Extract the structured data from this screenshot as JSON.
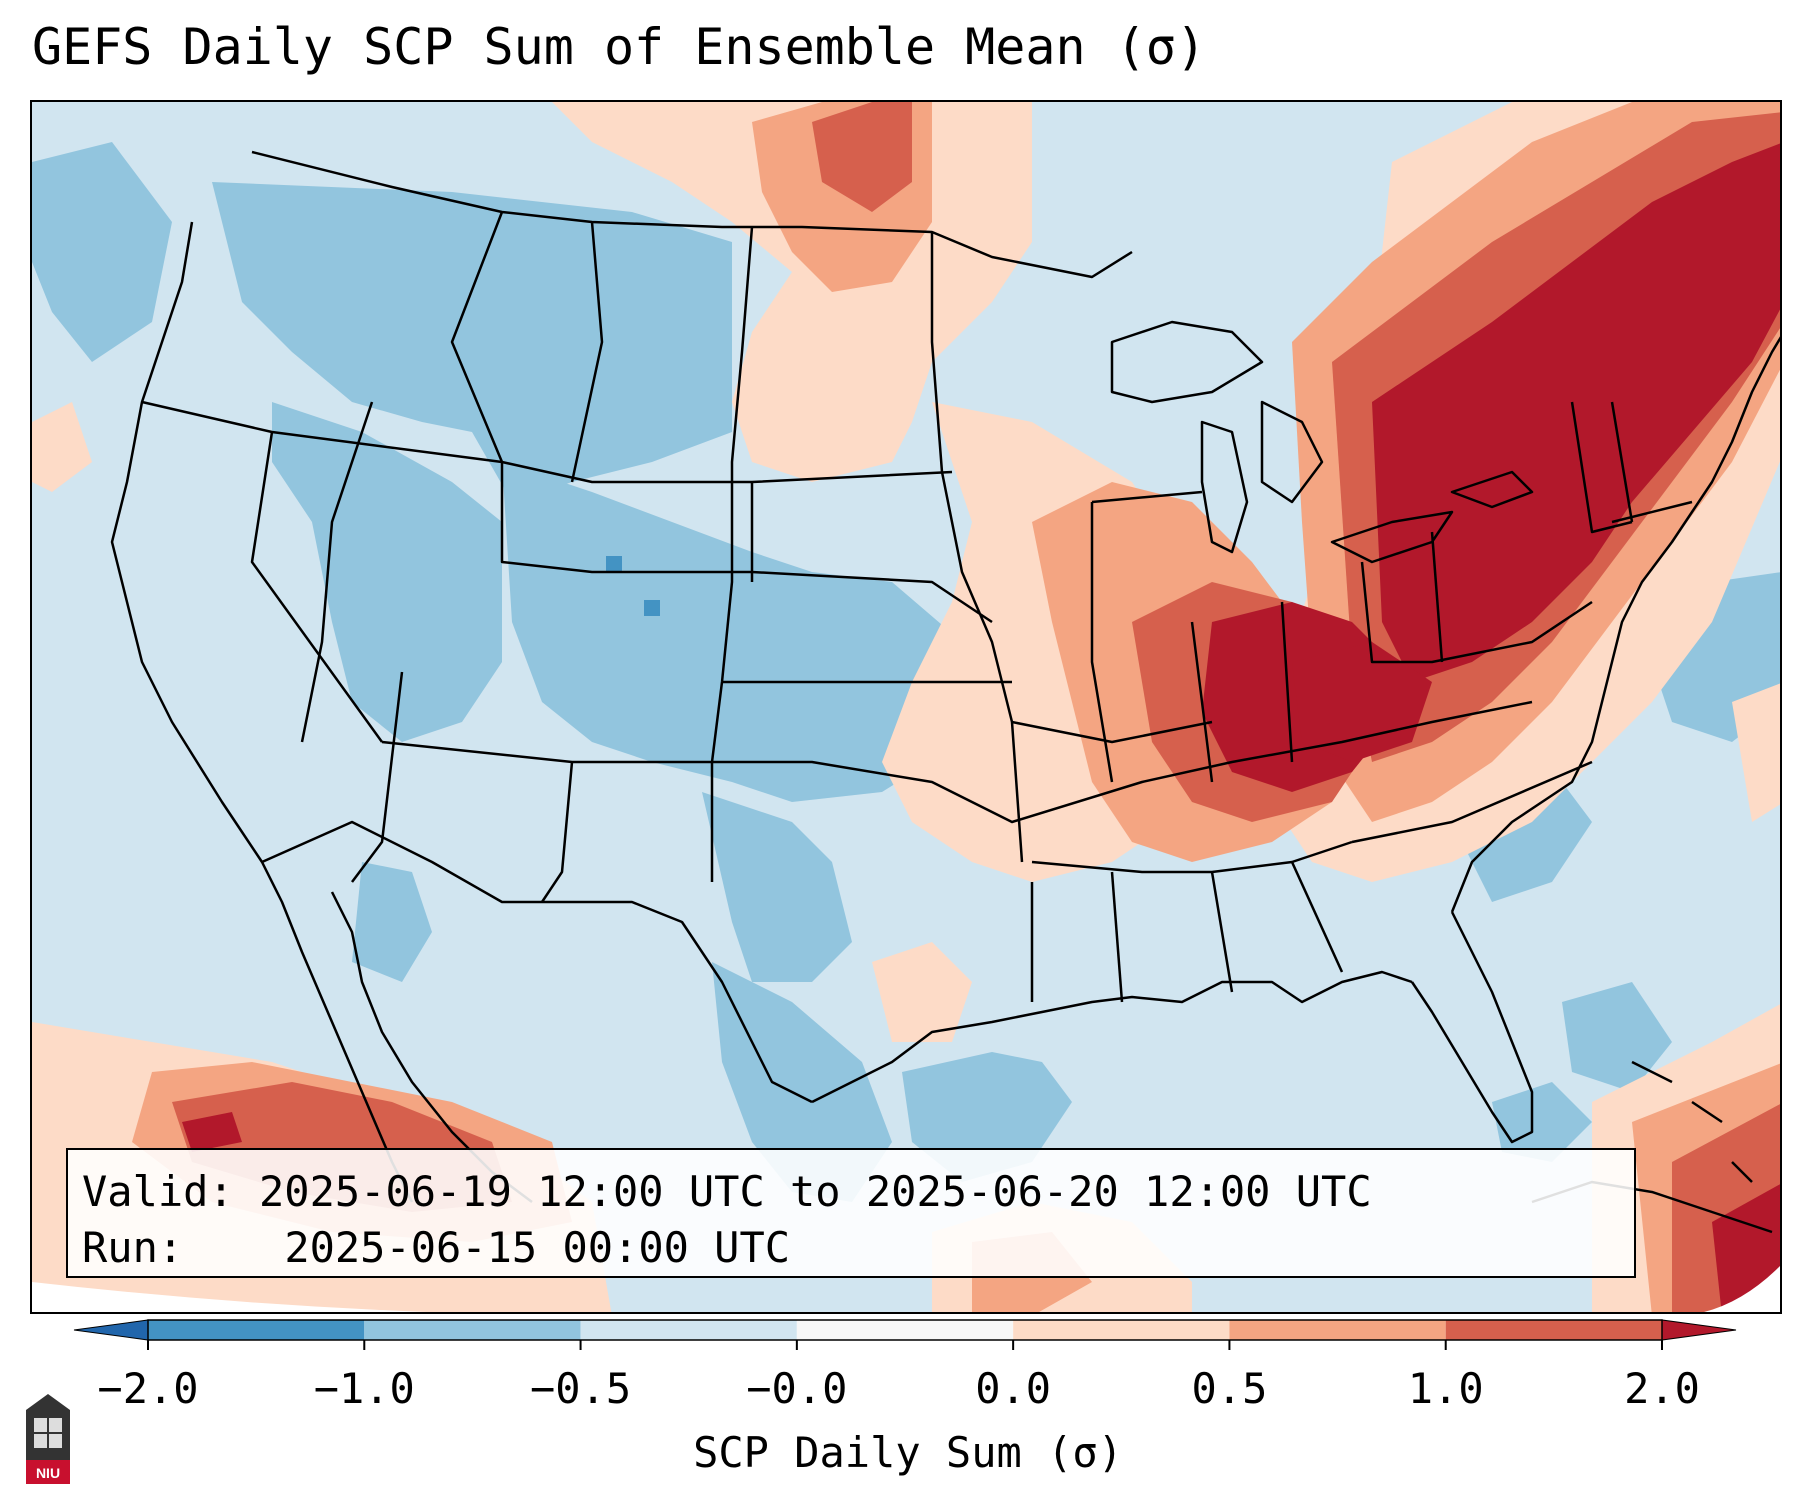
{
  "title": "GEFS Daily SCP Sum of Ensemble Mean (σ)",
  "info": {
    "valid_label": "Valid:",
    "valid_value": "2025-06-19 12:00 UTC to 2025-06-20 12:00 UTC",
    "run_label": "Run:",
    "run_value": "2025-06-15 00:00 UTC"
  },
  "colorbar": {
    "label": "SCP Daily Sum (σ)",
    "ticks": [
      "−2.0",
      "−1.0",
      "−0.5",
      "−0.0",
      "0.0",
      "0.5",
      "1.0",
      "2.0"
    ],
    "colors": [
      "#2166ac",
      "#4393c3",
      "#92c5de",
      "#d1e5f0",
      "#f7f7f7",
      "#fddbc7",
      "#f4a582",
      "#d6604d",
      "#b2182b"
    ]
  },
  "legend_bins": [
    {
      "range": "< -2.0",
      "color": "#2166ac"
    },
    {
      "range": "-2.0 to -1.0",
      "color": "#4393c3"
    },
    {
      "range": "-1.0 to -0.5",
      "color": "#92c5de"
    },
    {
      "range": "-0.5 to -0.0",
      "color": "#d1e5f0"
    },
    {
      "range": "-0.0 to 0.0",
      "color": "#f7f7f7"
    },
    {
      "range": "0.0 to 0.5",
      "color": "#fddbc7"
    },
    {
      "range": "0.5 to 1.0",
      "color": "#f4a582"
    },
    {
      "range": "1.0 to 2.0",
      "color": "#d6604d"
    },
    {
      "range": "> 2.0",
      "color": "#b2182b"
    }
  ],
  "logo_text": "NIU"
}
